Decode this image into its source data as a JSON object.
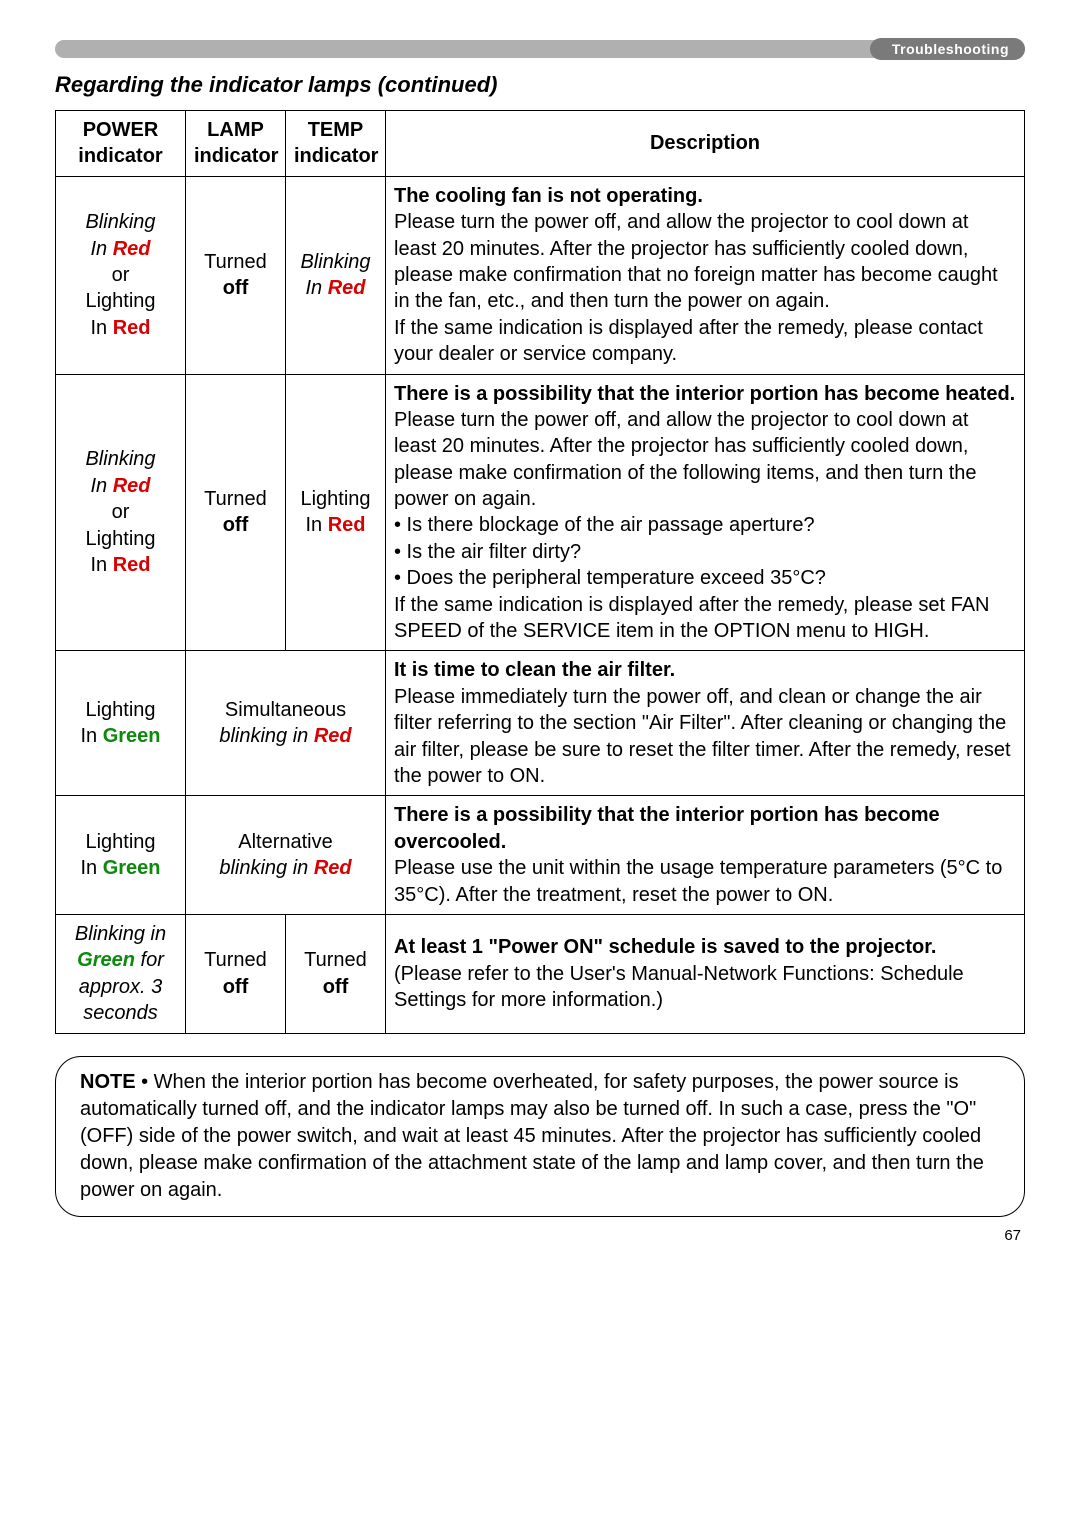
{
  "header": {
    "pill_label": "Troubleshooting",
    "section_title": "Regarding the indicator lamps (continued)"
  },
  "table": {
    "headers": {
      "power": [
        "POWER",
        "indicator"
      ],
      "lamp": [
        "LAMP",
        "indicator"
      ],
      "temp": [
        "TEMP",
        "indicator"
      ],
      "desc": "Description"
    },
    "rows": [
      {
        "power": {
          "l1": "Blinking",
          "l2": "In ",
          "l2c": "Red",
          "l3": "or",
          "l4": "Lighting",
          "l5": "In ",
          "l5c": "Red",
          "l1_italic": true,
          "l2_italic": true
        },
        "lamp": {
          "t1": "Turned",
          "t2": "off"
        },
        "temp": {
          "t1": "Blinking",
          "t2": "In ",
          "t2c": "Red",
          "italic": true
        },
        "desc_title": "The cooling fan is not operating.",
        "desc_body": "Please turn the power off, and allow the projector to cool down at least 20 minutes. After the projector has sufficiently cooled down, please make confirmation that no foreign matter has become caught in the fan, etc., and then turn the power on again.\nIf the same indication is displayed after the remedy, please contact your dealer or service company."
      },
      {
        "power": {
          "l1": "Blinking",
          "l2": "In ",
          "l2c": "Red",
          "l3": "or",
          "l4": "Lighting",
          "l5": "In ",
          "l5c": "Red",
          "l1_italic": true,
          "l2_italic": true
        },
        "lamp": {
          "t1": "Turned",
          "t2": "off"
        },
        "temp": {
          "t1": "Lighting",
          "t2": "In ",
          "t2c": "Red"
        },
        "desc_title": "There is a possibility that the interior portion has become heated.",
        "desc_body": "Please turn the power off, and allow the projector to cool down at least 20 minutes. After the projector has sufficiently cooled down, please make confirmation of the following items, and then turn the power on again.\n• Is there blockage of the air passage aperture?\n• Is the air filter dirty?\n• Does the peripheral temperature exceed 35°C?\nIf the same indication is displayed after the remedy, please set FAN SPEED of the SERVICE item in the OPTION menu to HIGH."
      },
      {
        "power": {
          "simple_l1": "Lighting",
          "simple_l2": "In ",
          "simple_l2c": "Green"
        },
        "merge": {
          "l1": "Simultaneous",
          "l2": "blinking in ",
          "l2c": "Red",
          "l2_italic": true
        },
        "desc_title": "It is time to clean the air filter.",
        "desc_body": "Please immediately turn the power off, and clean or change the air filter referring to the section \"Air Filter\". After cleaning or changing the air filter, please be sure to reset the filter timer. After the remedy, reset the power to ON."
      },
      {
        "power": {
          "simple_l1": "Lighting",
          "simple_l2": "In ",
          "simple_l2c": "Green"
        },
        "merge": {
          "l1": "Alternative",
          "l2": "blinking in ",
          "l2c": "Red",
          "l2_italic": true
        },
        "desc_title": "There is a possibility that the interior portion has become overcooled.",
        "desc_body": "Please use the unit within the usage temperature parameters (5°C to 35°C). After the treatment, reset the power to ON."
      },
      {
        "power": {
          "bp_l1": "Blinking in",
          "bp_l2c": "Green",
          "bp_l2_after": " for",
          "bp_l3": "approx. 3",
          "bp_l4": "seconds",
          "italic": true
        },
        "lamp": {
          "t1": "Turned",
          "t2": "off"
        },
        "temp": {
          "t1": "Turned",
          "t2": "off"
        },
        "desc_title": "At least 1 \"Power ON\" schedule is saved to the projector.",
        "desc_body": "(Please refer to the User's Manual-Network Functions: Schedule Settings for more information.)"
      }
    ]
  },
  "note": {
    "label": "NOTE",
    "body": " • When the interior portion has become overheated, for safety purposes, the power source is automatically turned off, and the indicator lamps may also be turned off. In such a case, press the \"O\" (OFF) side of the power switch, and wait at least 45 minutes. After the projector has sufficiently cooled down, please make confirmation of the attachment state of the lamp and lamp cover, and then turn the power on again."
  },
  "page_number": "67",
  "colors": {
    "red": "#d80000",
    "green": "#0b8a0b",
    "bar": "#b0b0b0",
    "pill": "#7a7a7a"
  }
}
